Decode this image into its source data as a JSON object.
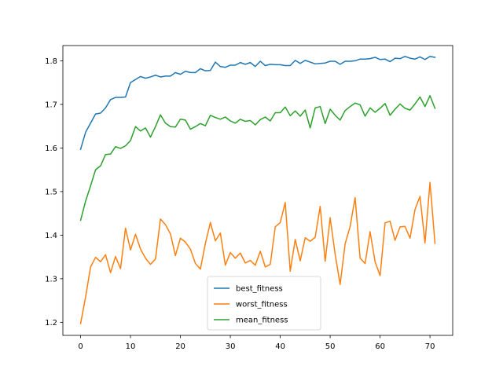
{
  "chart_data": {
    "type": "line",
    "title": "",
    "xlabel": "",
    "ylabel": "",
    "xlim": [
      -3.55,
      74.55
    ],
    "ylim": [
      1.17,
      1.835
    ],
    "xticks": [
      0,
      10,
      20,
      30,
      40,
      50,
      60,
      70
    ],
    "yticks": [
      1.2,
      1.3,
      1.4,
      1.5,
      1.6,
      1.7,
      1.8
    ],
    "ytick_labels": [
      "1.2",
      "1.3",
      "1.4",
      "1.5",
      "1.6",
      "1.7",
      "1.8"
    ],
    "grid": false,
    "legend_position": "lower-center",
    "x": [
      0,
      1,
      2,
      3,
      4,
      5,
      6,
      7,
      8,
      9,
      10,
      11,
      12,
      13,
      14,
      15,
      16,
      17,
      18,
      19,
      20,
      21,
      22,
      23,
      24,
      25,
      26,
      27,
      28,
      29,
      30,
      31,
      32,
      33,
      34,
      35,
      36,
      37,
      38,
      39,
      40,
      41,
      42,
      43,
      44,
      45,
      46,
      47,
      48,
      49,
      50,
      51,
      52,
      53,
      54,
      55,
      56,
      57,
      58,
      59,
      60,
      61,
      62,
      63,
      64,
      65,
      66,
      67,
      68,
      69,
      70,
      71
    ],
    "series": [
      {
        "name": "best_fitness",
        "color": "#1f77b4",
        "values": [
          1.597,
          1.636,
          1.657,
          1.678,
          1.68,
          1.692,
          1.711,
          1.716,
          1.716,
          1.717,
          1.75,
          1.757,
          1.764,
          1.76,
          1.763,
          1.767,
          1.763,
          1.765,
          1.765,
          1.773,
          1.769,
          1.776,
          1.773,
          1.773,
          1.782,
          1.777,
          1.778,
          1.797,
          1.787,
          1.785,
          1.79,
          1.79,
          1.796,
          1.792,
          1.796,
          1.787,
          1.799,
          1.789,
          1.792,
          1.791,
          1.791,
          1.789,
          1.789,
          1.801,
          1.794,
          1.801,
          1.797,
          1.793,
          1.794,
          1.795,
          1.799,
          1.799,
          1.792,
          1.799,
          1.799,
          1.8,
          1.804,
          1.804,
          1.805,
          1.808,
          1.803,
          1.804,
          1.798,
          1.806,
          1.805,
          1.81,
          1.806,
          1.804,
          1.809,
          1.803,
          1.81,
          1.808
        ]
      },
      {
        "name": "worst_fitness",
        "color": "#ff7f0e",
        "values": [
          1.197,
          1.258,
          1.327,
          1.349,
          1.339,
          1.355,
          1.314,
          1.351,
          1.323,
          1.416,
          1.366,
          1.402,
          1.368,
          1.347,
          1.333,
          1.345,
          1.437,
          1.424,
          1.403,
          1.353,
          1.393,
          1.384,
          1.368,
          1.335,
          1.322,
          1.381,
          1.429,
          1.387,
          1.405,
          1.331,
          1.36,
          1.347,
          1.359,
          1.336,
          1.342,
          1.331,
          1.363,
          1.327,
          1.333,
          1.419,
          1.429,
          1.475,
          1.317,
          1.39,
          1.341,
          1.394,
          1.386,
          1.395,
          1.466,
          1.34,
          1.44,
          1.356,
          1.287,
          1.38,
          1.42,
          1.486,
          1.347,
          1.335,
          1.408,
          1.339,
          1.307,
          1.428,
          1.432,
          1.388,
          1.419,
          1.42,
          1.393,
          1.459,
          1.489,
          1.382,
          1.521,
          1.381
        ]
      },
      {
        "name": "mean_fitness",
        "color": "#2ca02c",
        "values": [
          1.434,
          1.478,
          1.513,
          1.55,
          1.559,
          1.585,
          1.586,
          1.603,
          1.599,
          1.605,
          1.617,
          1.649,
          1.639,
          1.646,
          1.625,
          1.649,
          1.676,
          1.657,
          1.649,
          1.648,
          1.666,
          1.664,
          1.643,
          1.649,
          1.656,
          1.651,
          1.675,
          1.67,
          1.666,
          1.671,
          1.662,
          1.657,
          1.666,
          1.661,
          1.663,
          1.653,
          1.665,
          1.671,
          1.662,
          1.681,
          1.681,
          1.694,
          1.674,
          1.685,
          1.673,
          1.687,
          1.646,
          1.692,
          1.695,
          1.656,
          1.689,
          1.675,
          1.664,
          1.686,
          1.695,
          1.703,
          1.699,
          1.673,
          1.692,
          1.682,
          1.691,
          1.702,
          1.675,
          1.689,
          1.701,
          1.691,
          1.687,
          1.701,
          1.717,
          1.695,
          1.72,
          1.691
        ]
      }
    ]
  }
}
